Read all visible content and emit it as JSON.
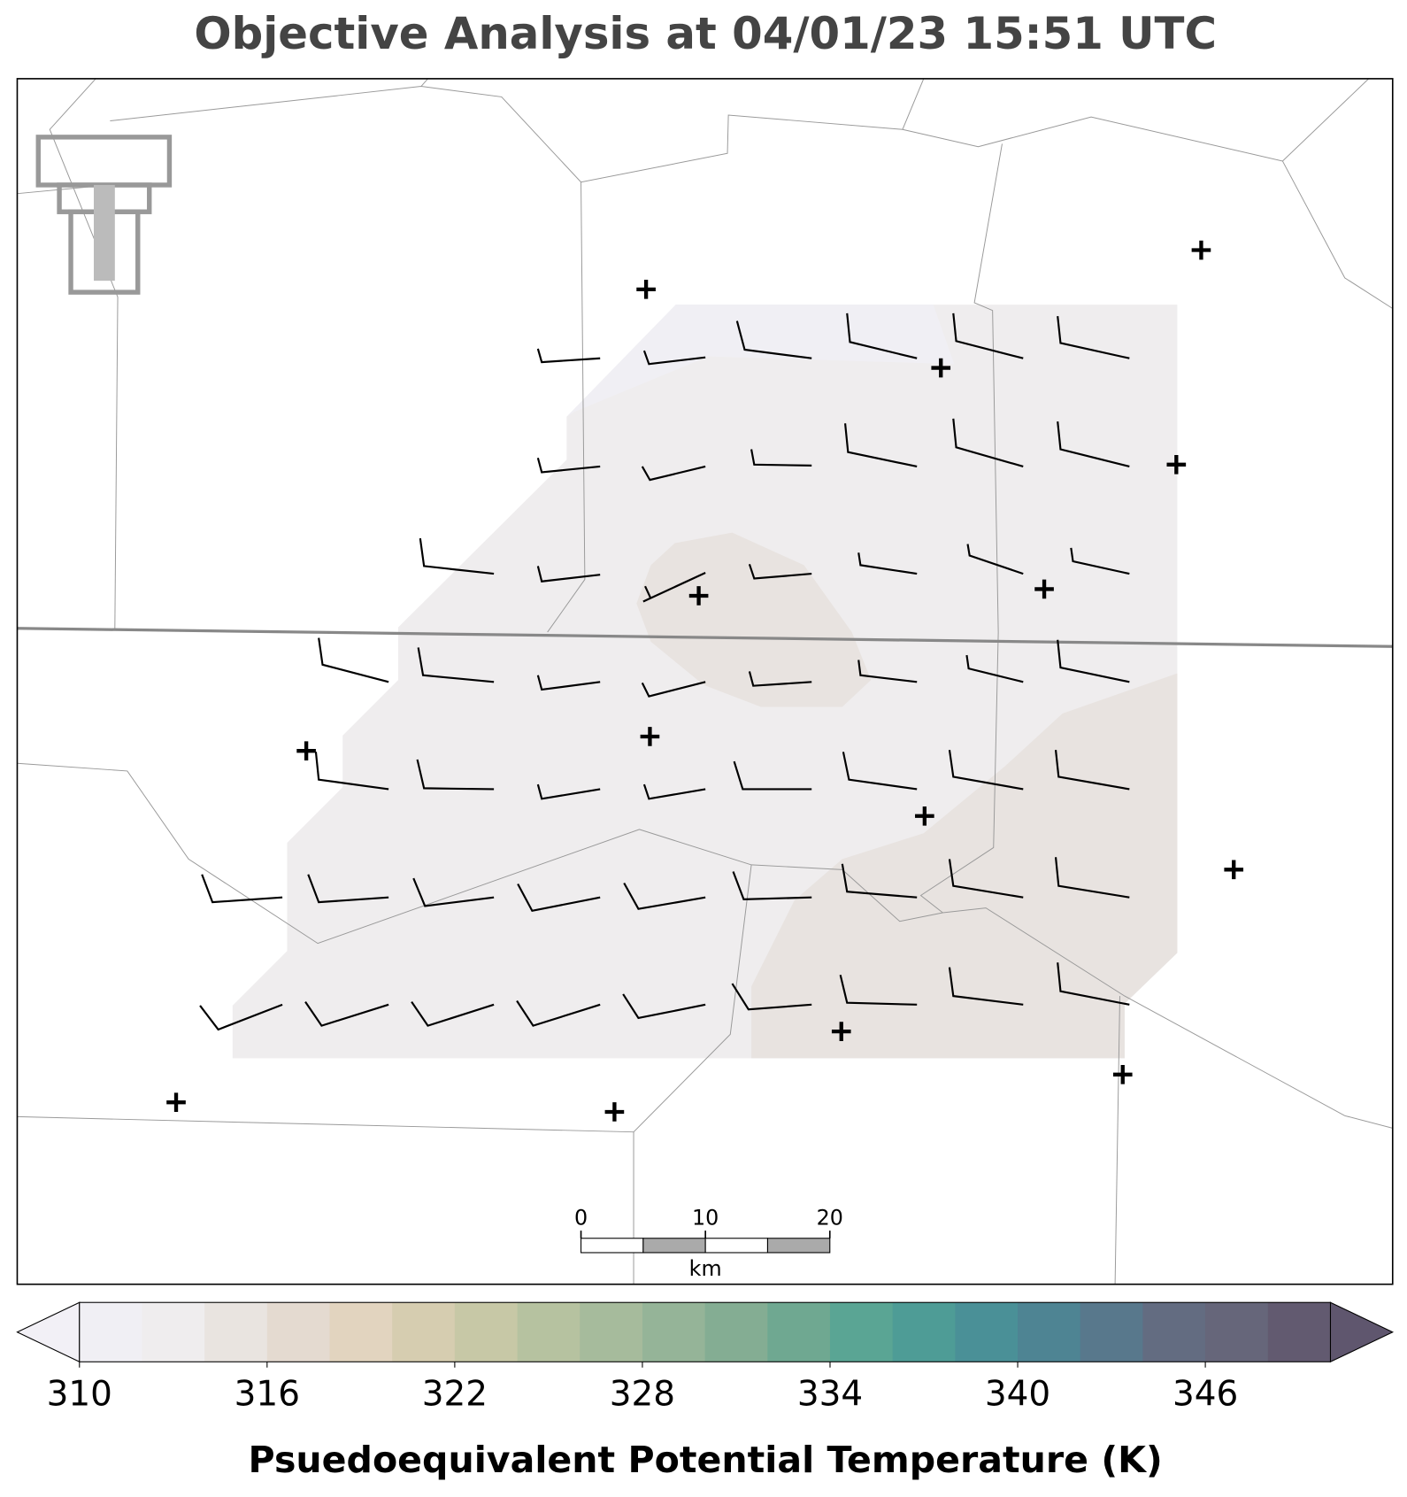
{
  "header": {
    "title": "Objective Analysis at 04/01/23 15:51 UTC"
  },
  "colorbar": {
    "levels": [
      310,
      312,
      314,
      316,
      318,
      320,
      322,
      324,
      326,
      328,
      330,
      332,
      334,
      336,
      338,
      340,
      342,
      344,
      346,
      348,
      350
    ],
    "colors": [
      "#f0eff4",
      "#efedee",
      "#e9e4e0",
      "#e4dad0",
      "#e2d4bf",
      "#d6cdb0",
      "#c7c8a6",
      "#b6c2a0",
      "#a6bb9c",
      "#95b498",
      "#84ad93",
      "#6fa891",
      "#5aa594",
      "#4e9c96",
      "#4a9097",
      "#4e8493",
      "#58788c",
      "#636c81",
      "#66667a",
      "#625a70"
    ],
    "extend_colors": [
      "#f2f0f6",
      "#5f566e"
    ],
    "ticks": [
      310,
      316,
      322,
      328,
      334,
      340,
      346
    ],
    "label": "Psuedoequivalent Potential Temperature (K)"
  },
  "scale_bar": {
    "ticks": [
      0,
      10,
      20
    ],
    "unit": "km"
  }
}
